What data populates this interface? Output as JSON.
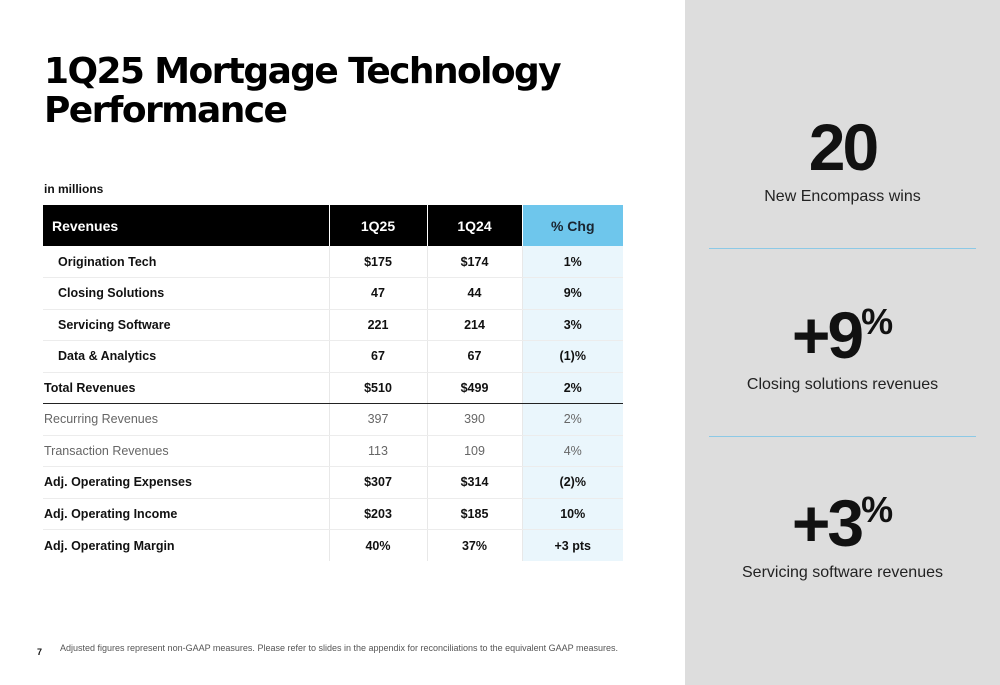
{
  "title": {
    "line1": "1Q25 Mortgage Technology",
    "line2": "Performance"
  },
  "units_note": "in millions",
  "table": {
    "headers": {
      "label": "Revenues",
      "col1": "1Q25",
      "col2": "1Q24",
      "col3": "% Chg"
    },
    "rows": [
      {
        "label": "Origination Tech",
        "col1": "$175",
        "col2": "$174",
        "col3": "1%"
      },
      {
        "label": "Closing Solutions",
        "col1": "47",
        "col2": "44",
        "col3": "9%"
      },
      {
        "label": "Servicing Software",
        "col1": "221",
        "col2": "214",
        "col3": "3%"
      },
      {
        "label": "Data & Analytics",
        "col1": "67",
        "col2": "67",
        "col3": "(1)%"
      },
      {
        "label": "Total Revenues",
        "col1": "$510",
        "col2": "$499",
        "col3": "2%"
      },
      {
        "label": "Recurring Revenues",
        "col1": "397",
        "col2": "390",
        "col3": "2%"
      },
      {
        "label": "Transaction Revenues",
        "col1": "113",
        "col2": "109",
        "col3": "4%"
      },
      {
        "label": "Adj. Operating Expenses",
        "col1": "$307",
        "col2": "$314",
        "col3": "(2)%"
      },
      {
        "label": "Adj. Operating Income",
        "col1": "$203",
        "col2": "$185",
        "col3": "10%"
      },
      {
        "label": "Adj. Operating Margin",
        "col1": "40%",
        "col2": "37%",
        "col3": "+3 pts"
      }
    ]
  },
  "highlights": [
    {
      "value": "20",
      "suffix": "",
      "caption": "New Encompass wins"
    },
    {
      "value": "+9",
      "suffix": "%",
      "caption": "Closing solutions revenues"
    },
    {
      "value": "+3",
      "suffix": "%",
      "caption": "Servicing software revenues"
    }
  ],
  "page_number": "7",
  "footnote": "Adjusted figures represent non-GAAP measures. Please refer to slides in the appendix for reconciliations to the equivalent GAAP measures.",
  "colors": {
    "header_bg": "#000000",
    "chg_header_bg": "#6ec6ec",
    "chg_cell_bg": "#eaf6fc",
    "panel_bg": "#dddddd",
    "divider": "#8cc9e6"
  }
}
